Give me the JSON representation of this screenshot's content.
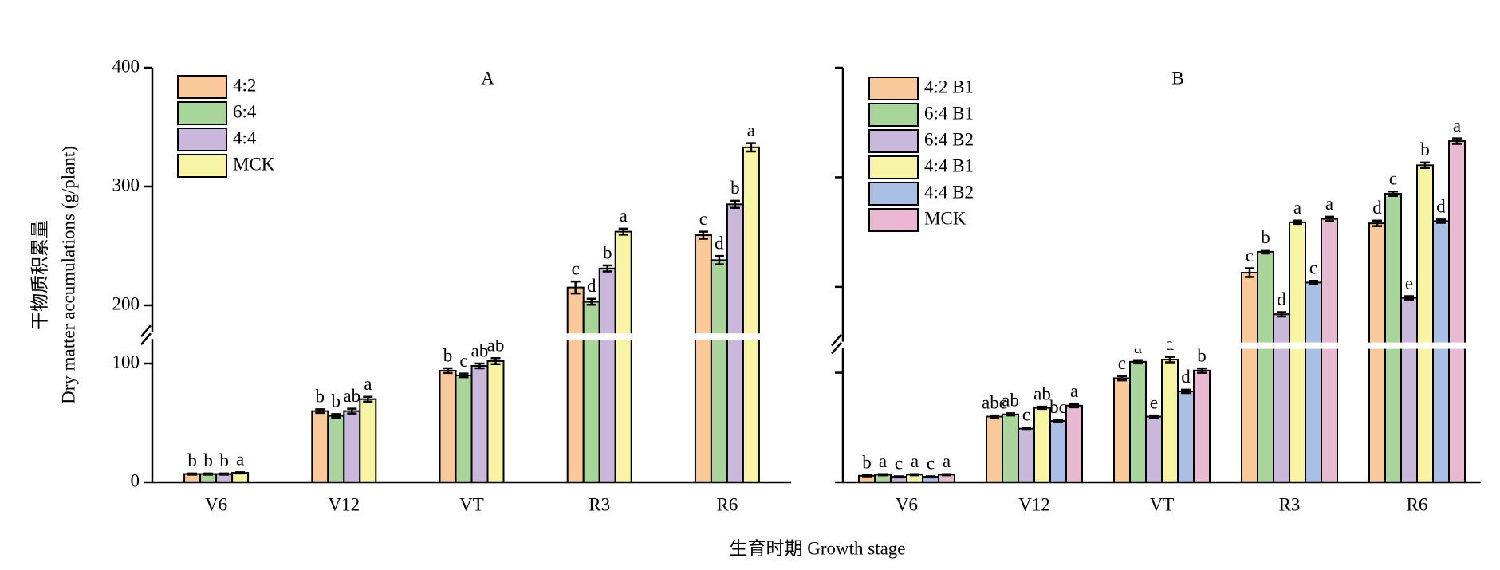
{
  "chart_data": [
    {
      "type": "bar",
      "title": "A",
      "ylabel": [
        "干物质积累量",
        "Dry matter accumulations (g/plant)"
      ],
      "xlabel": "生育时期 Growth stage",
      "categories": [
        "V6",
        "V12",
        "VT",
        "R3",
        "R6"
      ],
      "ylim": [
        0,
        400
      ],
      "ybreak": [
        122,
        177
      ],
      "yticks": [
        0,
        100,
        200,
        300,
        400
      ],
      "ytick_labels": true,
      "legend": "upper left",
      "series": [
        {
          "name": "4:2",
          "color": "#f9c999",
          "values": [
            7,
            60,
            94,
            215,
            259
          ],
          "errors": [
            0.5,
            1.5,
            2,
            5,
            3
          ],
          "letters": [
            "b",
            "b",
            "b",
            "c",
            "c"
          ]
        },
        {
          "name": "6:4",
          "color": "#a8d59a",
          "values": [
            7,
            56,
            90,
            203,
            238
          ],
          "errors": [
            0.5,
            1.5,
            1.5,
            2.5,
            3.5
          ],
          "letters": [
            "b",
            "b",
            "c",
            "d",
            "d"
          ]
        },
        {
          "name": "4:4",
          "color": "#c9b8dc",
          "values": [
            7,
            60,
            98,
            231,
            285
          ],
          "errors": [
            0.5,
            2,
            2,
            2.5,
            3
          ],
          "letters": [
            "b",
            "ab",
            "ab",
            "b",
            "b"
          ]
        },
        {
          "name": "MCK",
          "color": "#f7f4a3",
          "values": [
            8,
            70,
            102,
            262,
            333
          ],
          "errors": [
            0.5,
            2,
            2.5,
            2.5,
            3.5
          ],
          "letters": [
            "a",
            "a",
            "ab",
            "a",
            "a"
          ]
        }
      ]
    },
    {
      "type": "bar",
      "title": "B",
      "categories": [
        "V6",
        "V12",
        "VT",
        "R3",
        "R6"
      ],
      "ylim": [
        0,
        400
      ],
      "ybreak": [
        124,
        150
      ],
      "yticks": [
        0,
        100,
        200,
        300,
        400
      ],
      "ytick_labels": false,
      "legend": "upper left",
      "series": [
        {
          "name": "4:2 B1",
          "color": "#f9c999",
          "values": [
            6,
            60,
            95,
            213,
            258
          ],
          "errors": [
            0.5,
            1,
            2,
            4,
            2.5
          ],
          "letters": [
            "b",
            "abc",
            "c",
            "c",
            "d"
          ]
        },
        {
          "name": "6:4 B1",
          "color": "#a8d59a",
          "values": [
            7,
            62,
            110,
            232,
            285
          ],
          "errors": [
            0.5,
            1,
            1.5,
            1.5,
            2
          ],
          "letters": [
            "a",
            "ab",
            "a",
            "b",
            "c"
          ]
        },
        {
          "name": "6:4 B2",
          "color": "#c9b8dc",
          "values": [
            5,
            49,
            60,
            175,
            190
          ],
          "errors": [
            0.5,
            1,
            1,
            2,
            1.5
          ],
          "letters": [
            "c",
            "c",
            "e",
            "d",
            "e"
          ]
        },
        {
          "name": "4:4 B1",
          "color": "#f7f4a3",
          "values": [
            7,
            68,
            112,
            259,
            311
          ],
          "errors": [
            0.5,
            1,
            2.5,
            1.5,
            2.5
          ],
          "letters": [
            "a",
            "ab",
            "a",
            "a",
            "b"
          ]
        },
        {
          "name": "4:4 B2",
          "color": "#a9bfe3",
          "values": [
            5,
            56,
            83,
            204,
            260
          ],
          "errors": [
            0.5,
            1,
            1.5,
            1.5,
            1.5
          ],
          "letters": [
            "c",
            "bc",
            "d",
            "c",
            "d"
          ]
        },
        {
          "name": "MCK",
          "color": "#eab8d3",
          "values": [
            7,
            70,
            102,
            262,
            333
          ],
          "errors": [
            0.5,
            1.5,
            2,
            2,
            2.5
          ],
          "letters": [
            "a",
            "a",
            "b",
            "a",
            "a"
          ]
        }
      ]
    }
  ]
}
